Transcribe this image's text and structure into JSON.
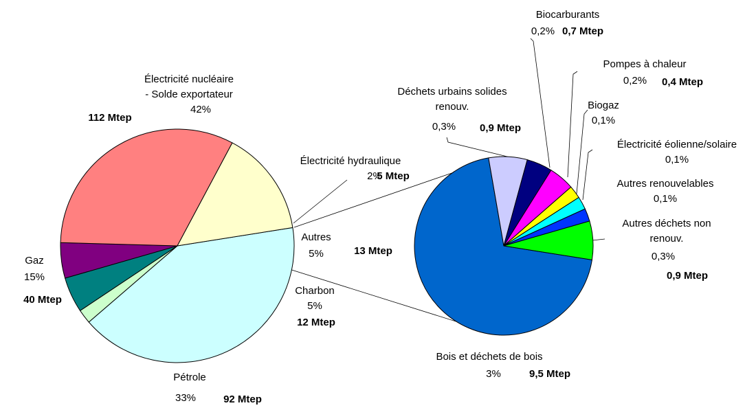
{
  "chart_data": [
    {
      "type": "pie",
      "categories": [
        [
          "Électricité nucléaire",
          "- Solde exportateur"
        ],
        [
          "Électricité hydraulique"
        ],
        [
          "Autres"
        ],
        [
          "Charbon"
        ],
        [
          "Pétrole"
        ],
        [
          "Gaz"
        ]
      ],
      "values": [
        42,
        2,
        5,
        5,
        33,
        15
      ],
      "value_labels": [
        "42%",
        "2%",
        "5%",
        "5%",
        "33%",
        "15%"
      ],
      "mtep": [
        112,
        5,
        13,
        12,
        92,
        40
      ],
      "mtep_labels": [
        "112 Mtep",
        "5 Mtep",
        "13 Mtep",
        "12 Mtep",
        "92 Mtep",
        "40 Mtep"
      ],
      "colors": [
        "#ccffff",
        "#ccffcc",
        "#008080",
        "#800080",
        "#ff8080",
        "#ffffcc"
      ]
    },
    {
      "type": "pie",
      "categories": [
        [
          "Bois et déchets de bois"
        ],
        [
          "Déchets urbains solides",
          "renouv."
        ],
        [
          "Biocarburants"
        ],
        [
          "Pompes à chaleur"
        ],
        [
          "Biogaz"
        ],
        [
          "Électricité éolienne/solaire"
        ],
        [
          "Autres renouvelables"
        ],
        [
          "Autres déchets non",
          "renouv."
        ]
      ],
      "values": [
        3,
        0.3,
        0.2,
        0.2,
        0.1,
        0.1,
        0.1,
        0.3
      ],
      "value_labels": [
        "3%",
        "0,3%",
        "0,2%",
        "0,2%",
        "0,1%",
        "0,1%",
        "0,1%",
        "0,3%"
      ],
      "mtep": [
        9.5,
        0.9,
        0.7,
        0.4,
        null,
        null,
        null,
        0.9
      ],
      "mtep_labels": [
        "9,5 Mtep",
        "0,9 Mtep",
        "0,7 Mtep",
        "0,4 Mtep",
        null,
        null,
        null,
        "0,9 Mtep"
      ],
      "colors": [
        "#0066cc",
        "#ccccff",
        "#000080",
        "#ff00ff",
        "#ffff00",
        "#00ffff",
        "#0033ff",
        "#00ff00"
      ]
    }
  ]
}
